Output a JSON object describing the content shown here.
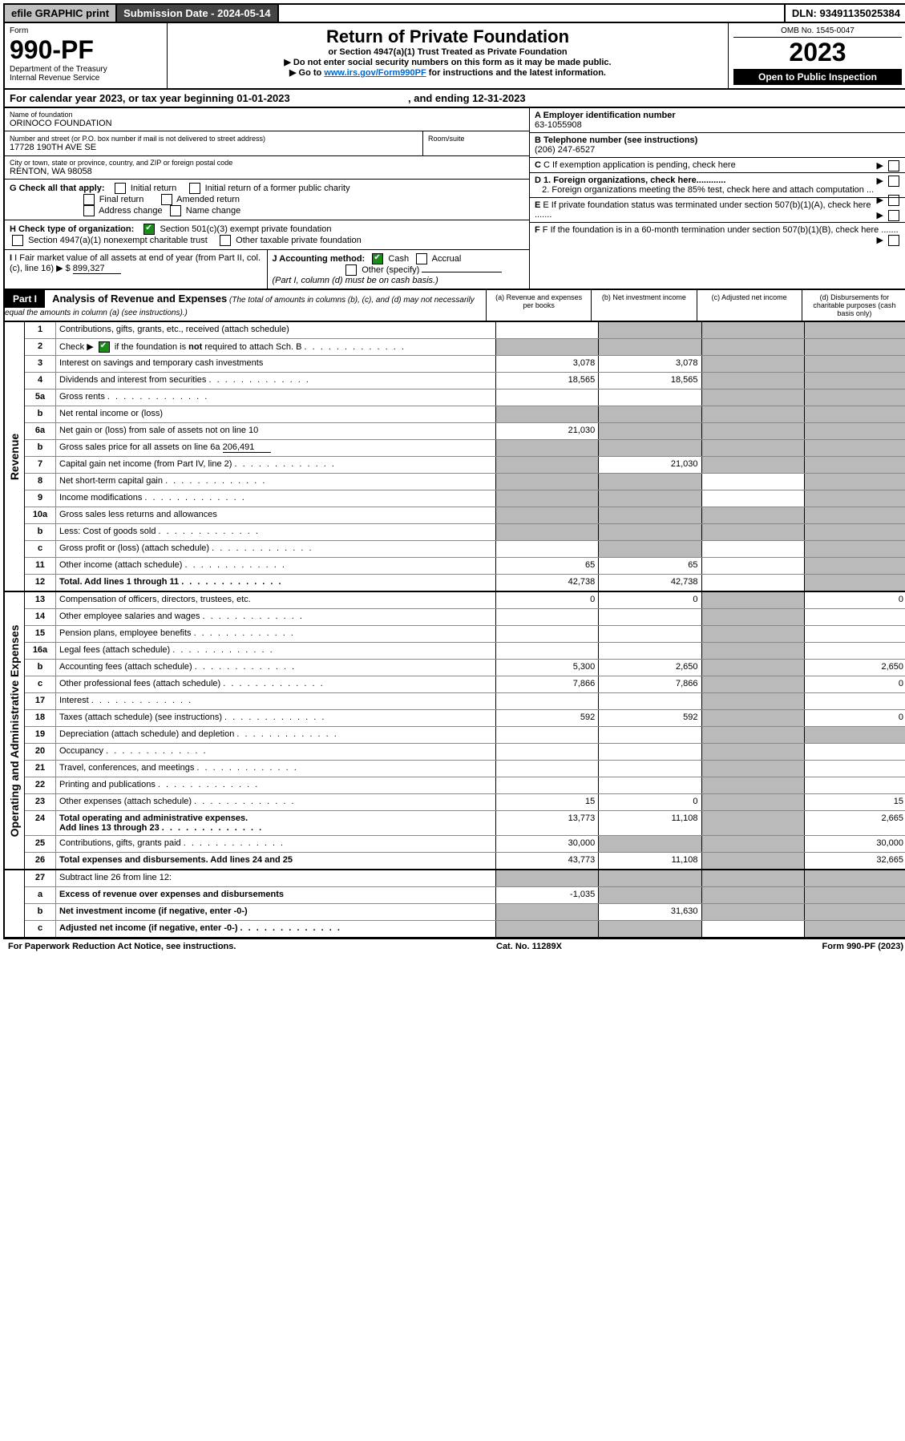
{
  "topbar": {
    "efile": "efile GRAPHIC print",
    "subdate_lbl": "Submission Date - ",
    "subdate": "2024-05-14",
    "dln_lbl": "DLN: ",
    "dln": "93491135025384"
  },
  "header": {
    "form_word": "Form",
    "form_no": "990-PF",
    "dept1": "Department of the Treasury",
    "dept2": "Internal Revenue Service",
    "title": "Return of Private Foundation",
    "subtitle": "or Section 4947(a)(1) Trust Treated as Private Foundation",
    "instr1": "▶ Do not enter social security numbers on this form as it may be made public.",
    "instr2_pre": "▶ Go to ",
    "instr2_link": "www.irs.gov/Form990PF",
    "instr2_post": " for instructions and the latest information.",
    "omb": "OMB No. 1545-0047",
    "year": "2023",
    "open": "Open to Public Inspection"
  },
  "cal": {
    "text_pre": "For calendar year 2023, or tax year beginning ",
    "begin": "01-01-2023",
    "text_mid": " , and ending ",
    "end": "12-31-2023"
  },
  "info": {
    "name_lbl": "Name of foundation",
    "name": "ORINOCO FOUNDATION",
    "addr_lbl": "Number and street (or P.O. box number if mail is not delivered to street address)",
    "room_lbl": "Room/suite",
    "addr": "17728 190TH AVE SE",
    "city_lbl": "City or town, state or province, country, and ZIP or foreign postal code",
    "city": "RENTON, WA  98058",
    "a_lbl": "A Employer identification number",
    "a_val": "63-1055908",
    "b_lbl": "B Telephone number (see instructions)",
    "b_val": "(206) 247-6527",
    "c_lbl": "C If exemption application is pending, check here",
    "g_lbl": "G Check all that apply:",
    "g_initial": "Initial return",
    "g_initial_former": "Initial return of a former public charity",
    "g_final": "Final return",
    "g_amended": "Amended return",
    "g_addr": "Address change",
    "g_name": "Name change",
    "h_lbl": "H Check type of organization:",
    "h_501": "Section 501(c)(3) exempt private foundation",
    "h_4947": "Section 4947(a)(1) nonexempt charitable trust",
    "h_other": "Other taxable private foundation",
    "i_lbl": "I Fair market value of all assets at end of year (from Part II, col. (c), line 16)",
    "i_val": "899,327",
    "j_lbl": "J Accounting method:",
    "j_cash": "Cash",
    "j_accrual": "Accrual",
    "j_other": "Other (specify)",
    "j_note": "(Part I, column (d) must be on cash basis.)",
    "d1": "D 1. Foreign organizations, check here............",
    "d2": "2. Foreign organizations meeting the 85% test, check here and attach computation ...",
    "e": "E  If private foundation status was terminated under section 507(b)(1)(A), check here .......",
    "f": "F  If the foundation is in a 60-month termination under section 507(b)(1)(B), check here .......",
    "dollar": "▶ $"
  },
  "part1": {
    "label": "Part I",
    "title": "Analysis of Revenue and Expenses",
    "note": " (The total of amounts in columns (b), (c), and (d) may not necessarily equal the amounts in column (a) (see instructions).)",
    "col_a": "(a)  Revenue and expenses per books",
    "col_b": "(b)  Net investment income",
    "col_c": "(c)  Adjusted net income",
    "col_d": "(d)  Disbursements for charitable purposes (cash basis only)"
  },
  "sides": {
    "rev": "Revenue",
    "exp": "Operating and Administrative Expenses"
  },
  "rows": {
    "r1": {
      "n": "1",
      "d": "Contributions, gifts, grants, etc., received (attach schedule)"
    },
    "r2": {
      "n": "2",
      "d": "Check ▶",
      "d2": " if the foundation is not required to attach Sch. B",
      "dots": true
    },
    "r3": {
      "n": "3",
      "d": "Interest on savings and temporary cash investments",
      "a": "3,078",
      "b": "3,078"
    },
    "r4": {
      "n": "4",
      "d": "Dividends and interest from securities",
      "a": "18,565",
      "b": "18,565",
      "dots": true
    },
    "r5a": {
      "n": "5a",
      "d": "Gross rents",
      "dots": true
    },
    "r5b": {
      "n": "b",
      "d": "Net rental income or (loss)"
    },
    "r6a": {
      "n": "6a",
      "d": "Net gain or (loss) from sale of assets not on line 10",
      "a": "21,030"
    },
    "r6b": {
      "n": "b",
      "d": "Gross sales price for all assets on line 6a",
      "inline": "206,491"
    },
    "r7": {
      "n": "7",
      "d": "Capital gain net income (from Part IV, line 2)",
      "b": "21,030",
      "dots": true
    },
    "r8": {
      "n": "8",
      "d": "Net short-term capital gain",
      "dots": true
    },
    "r9": {
      "n": "9",
      "d": "Income modifications",
      "dots": true
    },
    "r10a": {
      "n": "10a",
      "d": "Gross sales less returns and allowances"
    },
    "r10b": {
      "n": "b",
      "d": "Less: Cost of goods sold",
      "dots": true
    },
    "r10c": {
      "n": "c",
      "d": "Gross profit or (loss) (attach schedule)",
      "dots": true
    },
    "r11": {
      "n": "11",
      "d": "Other income (attach schedule)",
      "a": "65",
      "b": "65",
      "dots": true
    },
    "r12": {
      "n": "12",
      "d": "Total. Add lines 1 through 11",
      "bold": true,
      "a": "42,738",
      "b": "42,738",
      "dots": true
    },
    "r13": {
      "n": "13",
      "d": "Compensation of officers, directors, trustees, etc.",
      "a": "0",
      "b": "0",
      "dd": "0"
    },
    "r14": {
      "n": "14",
      "d": "Other employee salaries and wages",
      "dots": true
    },
    "r15": {
      "n": "15",
      "d": "Pension plans, employee benefits",
      "dots": true
    },
    "r16a": {
      "n": "16a",
      "d": "Legal fees (attach schedule)",
      "dots": true
    },
    "r16b": {
      "n": "b",
      "d": "Accounting fees (attach schedule)",
      "a": "5,300",
      "b": "2,650",
      "dd": "2,650",
      "dots": true
    },
    "r16c": {
      "n": "c",
      "d": "Other professional fees (attach schedule)",
      "a": "7,866",
      "b": "7,866",
      "dd": "0",
      "dots": true
    },
    "r17": {
      "n": "17",
      "d": "Interest",
      "dots": true
    },
    "r18": {
      "n": "18",
      "d": "Taxes (attach schedule) (see instructions)",
      "a": "592",
      "b": "592",
      "dd": "0",
      "dots": true
    },
    "r19": {
      "n": "19",
      "d": "Depreciation (attach schedule) and depletion",
      "dots": true
    },
    "r20": {
      "n": "20",
      "d": "Occupancy",
      "dots": true
    },
    "r21": {
      "n": "21",
      "d": "Travel, conferences, and meetings",
      "dots": true
    },
    "r22": {
      "n": "22",
      "d": "Printing and publications",
      "dots": true
    },
    "r23": {
      "n": "23",
      "d": "Other expenses (attach schedule)",
      "a": "15",
      "b": "0",
      "dd": "15",
      "dots": true
    },
    "r24": {
      "n": "24",
      "d": "Total operating and administrative expenses.",
      "d2": "Add lines 13 through 23",
      "bold": true,
      "a": "13,773",
      "b": "11,108",
      "dd": "2,665",
      "dots": true
    },
    "r25": {
      "n": "25",
      "d": "Contributions, gifts, grants paid",
      "a": "30,000",
      "dd": "30,000",
      "dots": true
    },
    "r26": {
      "n": "26",
      "d": "Total expenses and disbursements. Add lines 24 and 25",
      "bold": true,
      "a": "43,773",
      "b": "11,108",
      "dd": "32,665"
    },
    "r27": {
      "n": "27",
      "d": "Subtract line 26 from line 12:"
    },
    "r27a": {
      "n": "a",
      "d": "Excess of revenue over expenses and disbursements",
      "bold": true,
      "a": "-1,035"
    },
    "r27b": {
      "n": "b",
      "d": "Net investment income (if negative, enter -0-)",
      "bold": true,
      "b": "31,630"
    },
    "r27c": {
      "n": "c",
      "d": "Adjusted net income (if negative, enter -0-)",
      "bold": true,
      "dots": true
    }
  },
  "footer": {
    "left": "For Paperwork Reduction Act Notice, see instructions.",
    "mid": "Cat. No. 11289X",
    "right": "Form 990-PF (2023)"
  },
  "not_word": "not"
}
